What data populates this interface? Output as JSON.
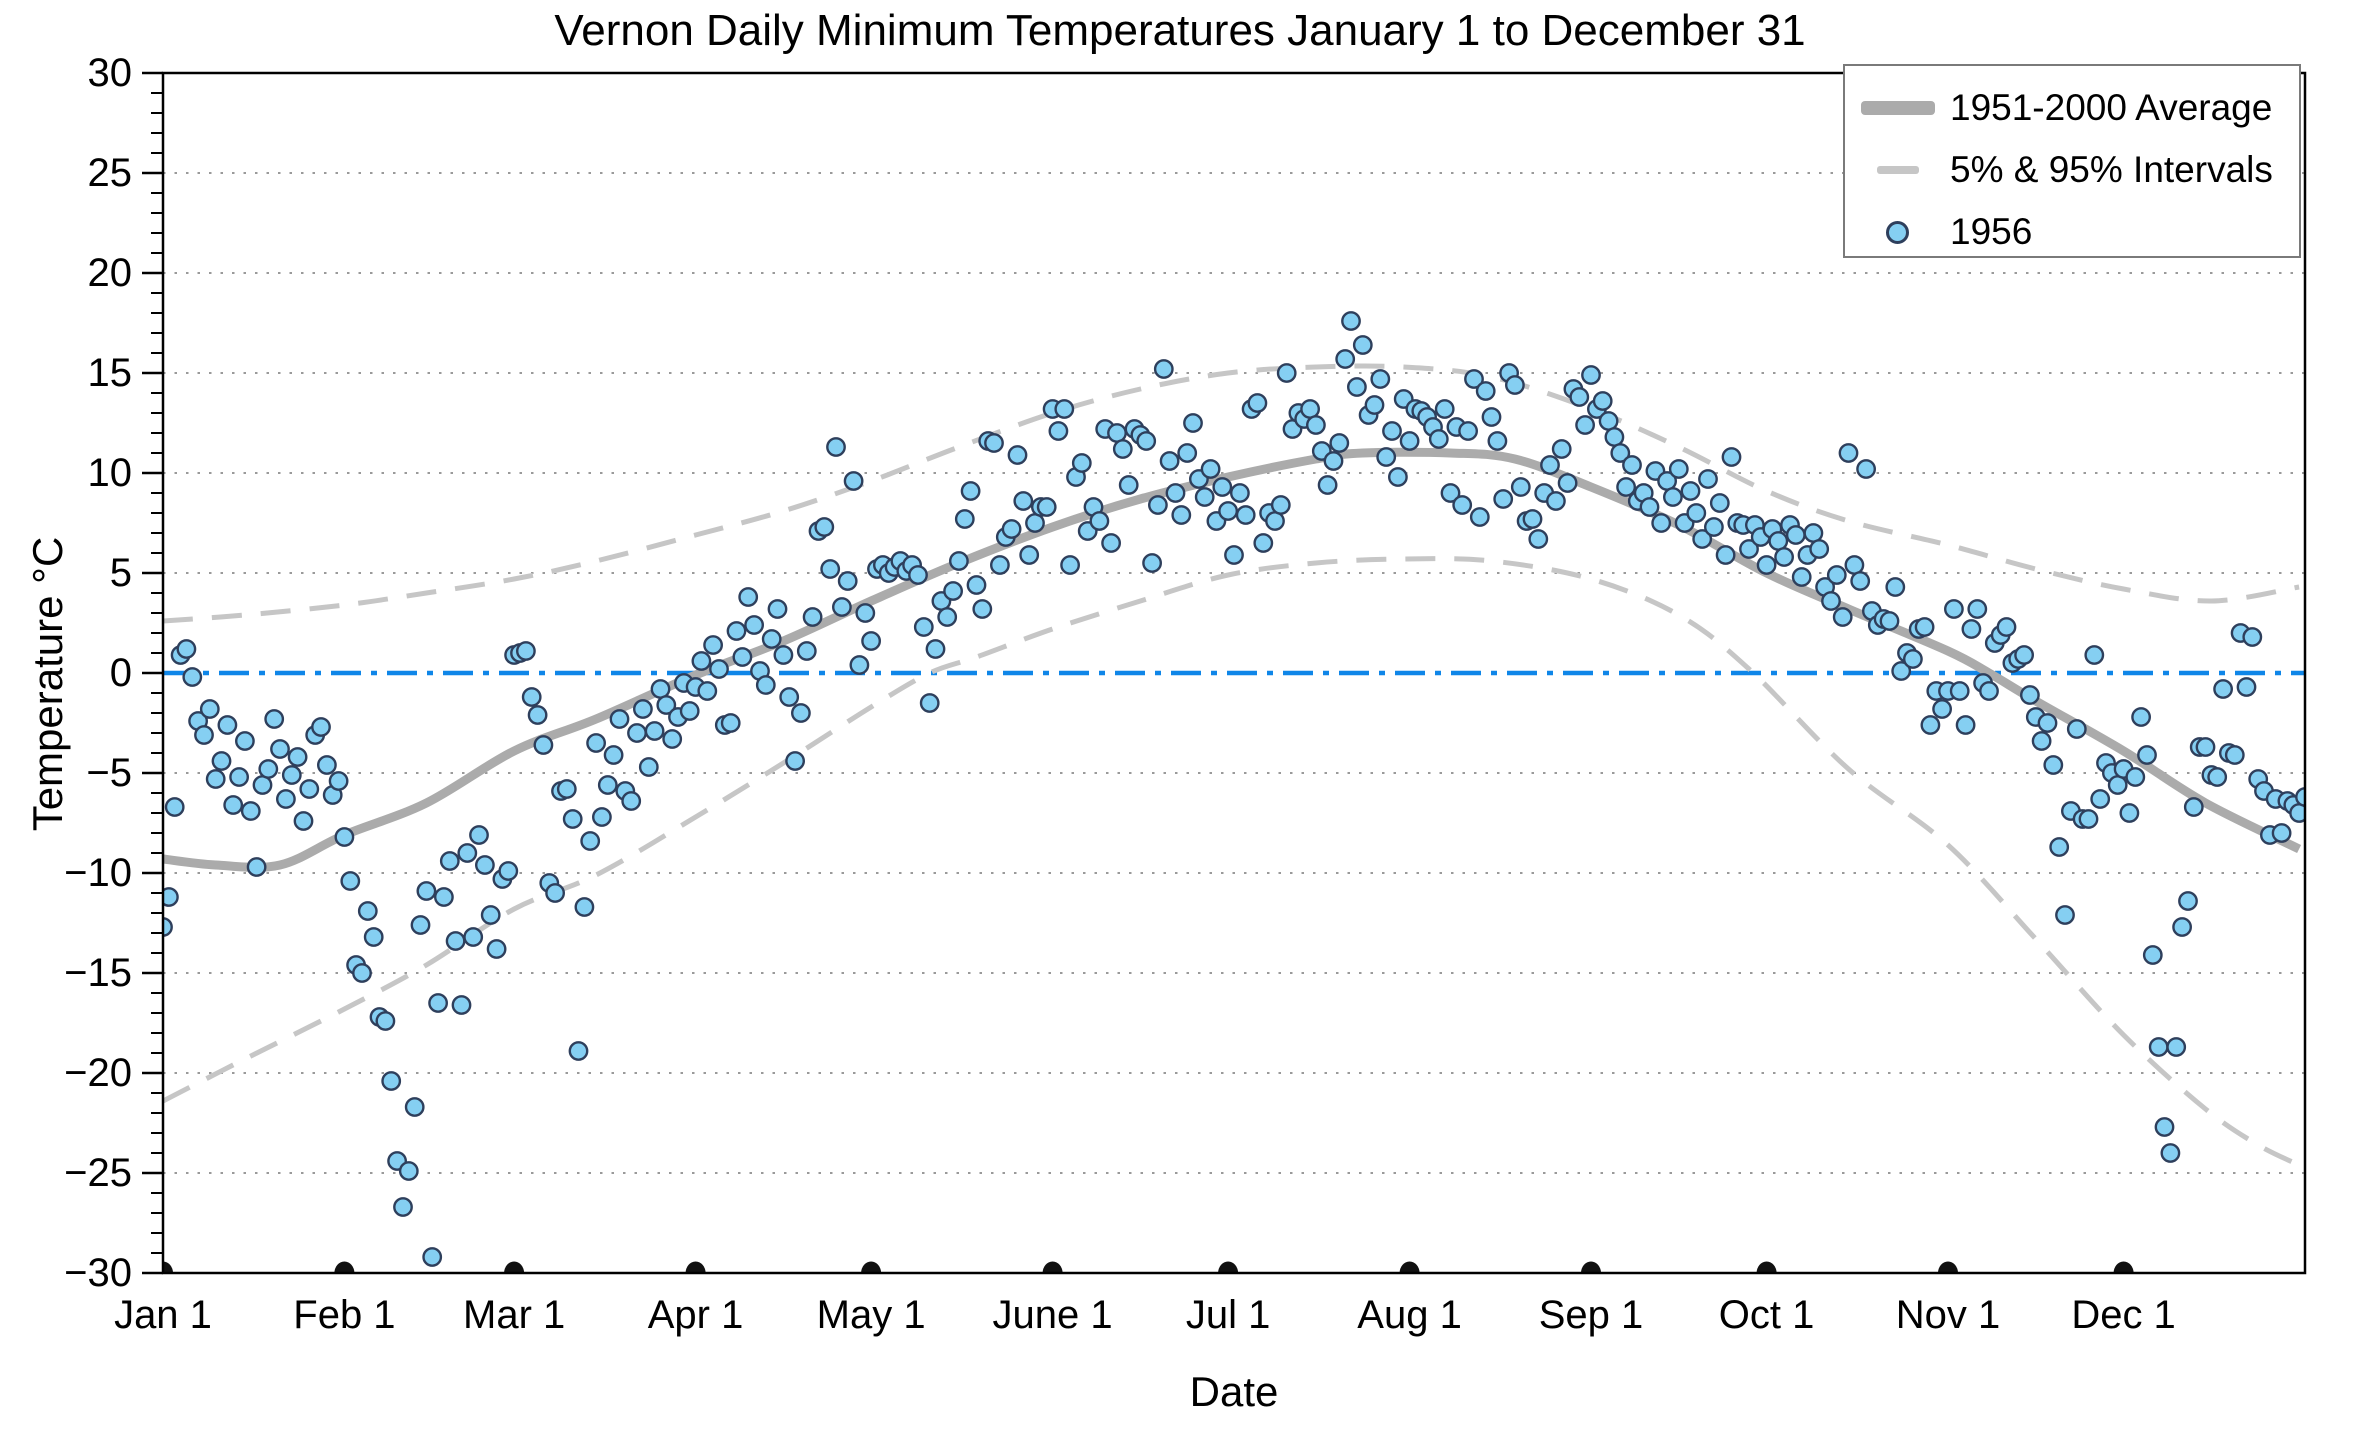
{
  "title": "Vernon Daily Minimum Temperatures January 1 to December 31",
  "axes": {
    "x_label": "Date",
    "y_label": "Temperature °C",
    "y_tick_labels": [
      "30",
      "25",
      "20",
      "15",
      "10",
      "5",
      "0",
      "−5",
      "−10",
      "−15",
      "−20",
      "−25",
      "−30"
    ],
    "y_tick_values": [
      30,
      25,
      20,
      15,
      10,
      5,
      0,
      -5,
      -10,
      -15,
      -20,
      -25,
      -30
    ],
    "x_ticks": [
      {
        "label": "Jan 1",
        "day": 1
      },
      {
        "label": "Feb 1",
        "day": 32
      },
      {
        "label": "Mar 1",
        "day": 61
      },
      {
        "label": "Apr 1",
        "day": 92
      },
      {
        "label": "May 1",
        "day": 122
      },
      {
        "label": "June 1",
        "day": 153
      },
      {
        "label": "Jul 1",
        "day": 183
      },
      {
        "label": "Aug 1",
        "day": 214
      },
      {
        "label": "Sep 1",
        "day": 245
      },
      {
        "label": "Oct 1",
        "day": 275
      },
      {
        "label": "Nov 1",
        "day": 306
      },
      {
        "label": "Dec 1",
        "day": 336
      }
    ]
  },
  "legend": {
    "items": [
      {
        "label": "1951-2000 Average",
        "swatch": "thick-gray-line"
      },
      {
        "label": "5% & 95% Intervals",
        "swatch": "gray-dash"
      },
      {
        "label": "1956",
        "swatch": "blue-circle-marker"
      }
    ]
  },
  "colors": {
    "average_line": "#ababab",
    "interval_line": "#c6c6c6",
    "zero_line": "#0f86e8",
    "marker_fill": "#85cff2",
    "marker_edge": "#2e3f5c",
    "gridline": "#9a9a9a",
    "axis": "#000000",
    "month_marker": "#111111"
  },
  "chart_data": {
    "type": "scatter",
    "title": "Vernon Daily Minimum Temperatures January 1 to December 31",
    "xlabel": "Date",
    "ylabel": "Temperature °C",
    "ylim": [
      -30,
      30
    ],
    "xlim_days": [
      1,
      367
    ],
    "grid": "horizontal-dotted-every-5C",
    "legend_position": "upper-right",
    "zero_reference_line": 0,
    "month_marker_days": [
      1,
      32,
      61,
      92,
      122,
      153,
      183,
      214,
      245,
      275,
      306,
      336
    ],
    "month_marker_y": -30,
    "series": [
      {
        "name": "1951-2000 Average",
        "type": "line",
        "style": "thick-solid-gray",
        "knots": [
          [
            1,
            -9.3
          ],
          [
            10,
            -9.6
          ],
          [
            21,
            -9.6
          ],
          [
            32,
            -8.1
          ],
          [
            46,
            -6.5
          ],
          [
            61,
            -3.9
          ],
          [
            75,
            -2.3
          ],
          [
            92,
            -0.1
          ],
          [
            107,
            1.6
          ],
          [
            122,
            3.6
          ],
          [
            137,
            5.5
          ],
          [
            153,
            7.3
          ],
          [
            168,
            8.7
          ],
          [
            183,
            9.8
          ],
          [
            198,
            10.7
          ],
          [
            206,
            11.0
          ],
          [
            221,
            11.0
          ],
          [
            232,
            10.7
          ],
          [
            245,
            9.3
          ],
          [
            260,
            7.4
          ],
          [
            275,
            5.0
          ],
          [
            289,
            3.2
          ],
          [
            306,
            1.1
          ],
          [
            313,
            0.0
          ],
          [
            321,
            -1.4
          ],
          [
            336,
            -3.9
          ],
          [
            350,
            -6.5
          ],
          [
            366,
            -8.8
          ]
        ]
      },
      {
        "name": "95% Interval",
        "type": "line",
        "style": "dashed-gray",
        "knots": [
          [
            1,
            2.6
          ],
          [
            15,
            2.9
          ],
          [
            32,
            3.4
          ],
          [
            46,
            4.0
          ],
          [
            61,
            4.7
          ],
          [
            75,
            5.6
          ],
          [
            92,
            6.9
          ],
          [
            107,
            8.1
          ],
          [
            122,
            9.6
          ],
          [
            137,
            11.3
          ],
          [
            153,
            13.0
          ],
          [
            168,
            14.2
          ],
          [
            183,
            15.0
          ],
          [
            198,
            15.3
          ],
          [
            213,
            15.3
          ],
          [
            228,
            14.8
          ],
          [
            245,
            13.2
          ],
          [
            260,
            11.3
          ],
          [
            275,
            9.1
          ],
          [
            289,
            7.6
          ],
          [
            306,
            6.4
          ],
          [
            321,
            5.2
          ],
          [
            336,
            4.2
          ],
          [
            351,
            3.6
          ],
          [
            366,
            4.3
          ]
        ]
      },
      {
        "name": "5% Interval",
        "type": "line",
        "style": "dashed-gray",
        "knots": [
          [
            1,
            -21.4
          ],
          [
            15,
            -19.3
          ],
          [
            32,
            -16.8
          ],
          [
            46,
            -14.6
          ],
          [
            61,
            -11.8
          ],
          [
            75,
            -10.1
          ],
          [
            92,
            -7.2
          ],
          [
            107,
            -4.5
          ],
          [
            122,
            -1.7
          ],
          [
            132,
            0.0
          ],
          [
            140,
            0.8
          ],
          [
            153,
            2.2
          ],
          [
            168,
            3.6
          ],
          [
            183,
            4.9
          ],
          [
            198,
            5.5
          ],
          [
            213,
            5.7
          ],
          [
            228,
            5.6
          ],
          [
            245,
            4.7
          ],
          [
            260,
            2.9
          ],
          [
            272,
            0.2
          ],
          [
            289,
            -4.8
          ],
          [
            306,
            -8.6
          ],
          [
            321,
            -13.3
          ],
          [
            336,
            -18.1
          ],
          [
            350,
            -21.8
          ],
          [
            359,
            -23.6
          ],
          [
            366,
            -24.6
          ]
        ]
      },
      {
        "name": "1956",
        "type": "scatter",
        "x_unit": "day_of_year_1956_starting_Jan1",
        "values": [
          -12.7,
          -11.2,
          -6.7,
          0.9,
          1.2,
          -0.2,
          -2.4,
          -3.1,
          -1.8,
          -5.3,
          -4.4,
          -2.6,
          -6.6,
          -5.2,
          -3.4,
          -6.9,
          -9.7,
          -5.6,
          -4.8,
          -2.3,
          -3.8,
          -6.3,
          -5.1,
          -4.2,
          -7.4,
          -5.8,
          -3.1,
          -2.7,
          -4.6,
          -6.1,
          -5.4,
          -8.2,
          -10.4,
          -14.6,
          -15.0,
          -11.9,
          -13.2,
          -17.2,
          -17.4,
          -20.4,
          -24.4,
          -26.7,
          -24.9,
          -21.7,
          -12.6,
          -10.9,
          -29.2,
          -16.5,
          -11.2,
          -9.4,
          -13.4,
          -16.6,
          -9.0,
          -13.2,
          -8.1,
          -9.6,
          -12.1,
          -13.8,
          -10.3,
          -9.9,
          0.9,
          1.0,
          1.1,
          -1.2,
          -2.1,
          -3.6,
          -10.5,
          -11.0,
          -5.9,
          -5.8,
          -7.3,
          -18.9,
          -11.7,
          -8.4,
          -3.5,
          -7.2,
          -5.6,
          -4.1,
          -2.3,
          -5.9,
          -6.4,
          -3.0,
          -1.8,
          -4.7,
          -2.9,
          -0.8,
          -1.6,
          -3.3,
          -2.2,
          -0.5,
          -1.9,
          -0.7,
          0.6,
          -0.9,
          1.4,
          0.2,
          -2.6,
          -2.5,
          2.1,
          0.8,
          3.8,
          2.4,
          0.1,
          -0.6,
          1.7,
          3.2,
          0.9,
          -1.2,
          -4.4,
          -2.0,
          1.1,
          2.8,
          7.1,
          7.3,
          5.2,
          11.3,
          3.3,
          4.6,
          9.6,
          0.4,
          3.0,
          1.6,
          5.2,
          5.4,
          5.0,
          5.3,
          5.6,
          5.1,
          5.4,
          4.9,
          2.3,
          -1.5,
          1.2,
          3.6,
          2.8,
          4.1,
          5.6,
          7.7,
          9.1,
          4.4,
          3.2,
          11.6,
          11.5,
          5.4,
          6.8,
          7.2,
          10.9,
          8.6,
          5.9,
          7.5,
          8.3,
          8.3,
          13.2,
          12.1,
          13.2,
          5.4,
          9.8,
          10.5,
          7.1,
          8.3,
          7.6,
          12.2,
          6.5,
          12.0,
          11.2,
          9.4,
          12.2,
          11.9,
          11.6,
          5.5,
          8.4,
          15.2,
          10.6,
          9.0,
          7.9,
          11.0,
          12.5,
          9.7,
          8.8,
          10.2,
          7.6,
          9.3,
          8.1,
          5.9,
          9.0,
          7.9,
          13.2,
          13.5,
          6.5,
          8.0,
          7.6,
          8.4,
          15.0,
          12.2,
          13.0,
          12.7,
          13.2,
          12.4,
          11.1,
          9.4,
          10.6,
          11.5,
          15.7,
          17.6,
          14.3,
          16.4,
          12.9,
          13.4,
          14.7,
          10.8,
          12.1,
          9.8,
          13.7,
          11.6,
          13.2,
          13.1,
          12.8,
          12.3,
          11.7,
          13.2,
          9.0,
          12.3,
          8.4,
          12.1,
          14.7,
          7.8,
          14.1,
          12.8,
          11.6,
          8.7,
          15.0,
          14.4,
          9.3,
          7.6,
          7.7,
          6.7,
          9.0,
          10.4,
          8.6,
          11.2,
          9.5,
          14.2,
          13.8,
          12.4,
          14.9,
          13.2,
          13.6,
          12.6,
          11.8,
          11.0,
          9.3,
          10.4,
          8.6,
          9.0,
          8.3,
          10.1,
          7.5,
          9.6,
          8.8,
          10.2,
          7.5,
          9.1,
          8.0,
          6.7,
          9.7,
          7.3,
          8.5,
          5.9,
          10.8,
          7.5,
          7.4,
          6.2,
          7.4,
          6.8,
          5.4,
          7.2,
          6.6,
          5.8,
          7.4,
          6.9,
          4.8,
          5.9,
          7.0,
          6.2,
          4.3,
          3.6,
          4.9,
          2.8,
          11.0,
          5.4,
          4.6,
          10.2,
          3.1,
          2.4,
          2.7,
          2.6,
          4.3,
          0.1,
          1.0,
          0.7,
          2.2,
          2.3,
          -2.6,
          -0.9,
          -1.8,
          -0.9,
          3.2,
          -0.9,
          -2.6,
          2.2,
          3.2,
          -0.5,
          -0.9,
          1.5,
          1.9,
          2.3,
          0.5,
          0.7,
          0.9,
          -1.1,
          -2.2,
          -3.4,
          -2.5,
          -4.6,
          -8.7,
          -12.1,
          -6.9,
          -2.8,
          -7.3,
          -7.3,
          0.9,
          -6.3,
          -4.5,
          -5.0,
          -5.6,
          -4.8,
          -7.0,
          -5.2,
          -2.2,
          -4.1,
          -14.1,
          -18.7,
          -22.7,
          -24.0,
          -18.7,
          -12.7,
          -11.4,
          -6.7,
          -3.7,
          -3.7,
          -5.1,
          -5.2,
          -0.8,
          -4.0,
          -4.1,
          2.0,
          -0.7,
          1.8,
          -5.3,
          -5.9,
          -8.1,
          -6.3,
          -8.0,
          -6.4,
          -6.6,
          -7.0,
          -6.2
        ]
      }
    ]
  }
}
